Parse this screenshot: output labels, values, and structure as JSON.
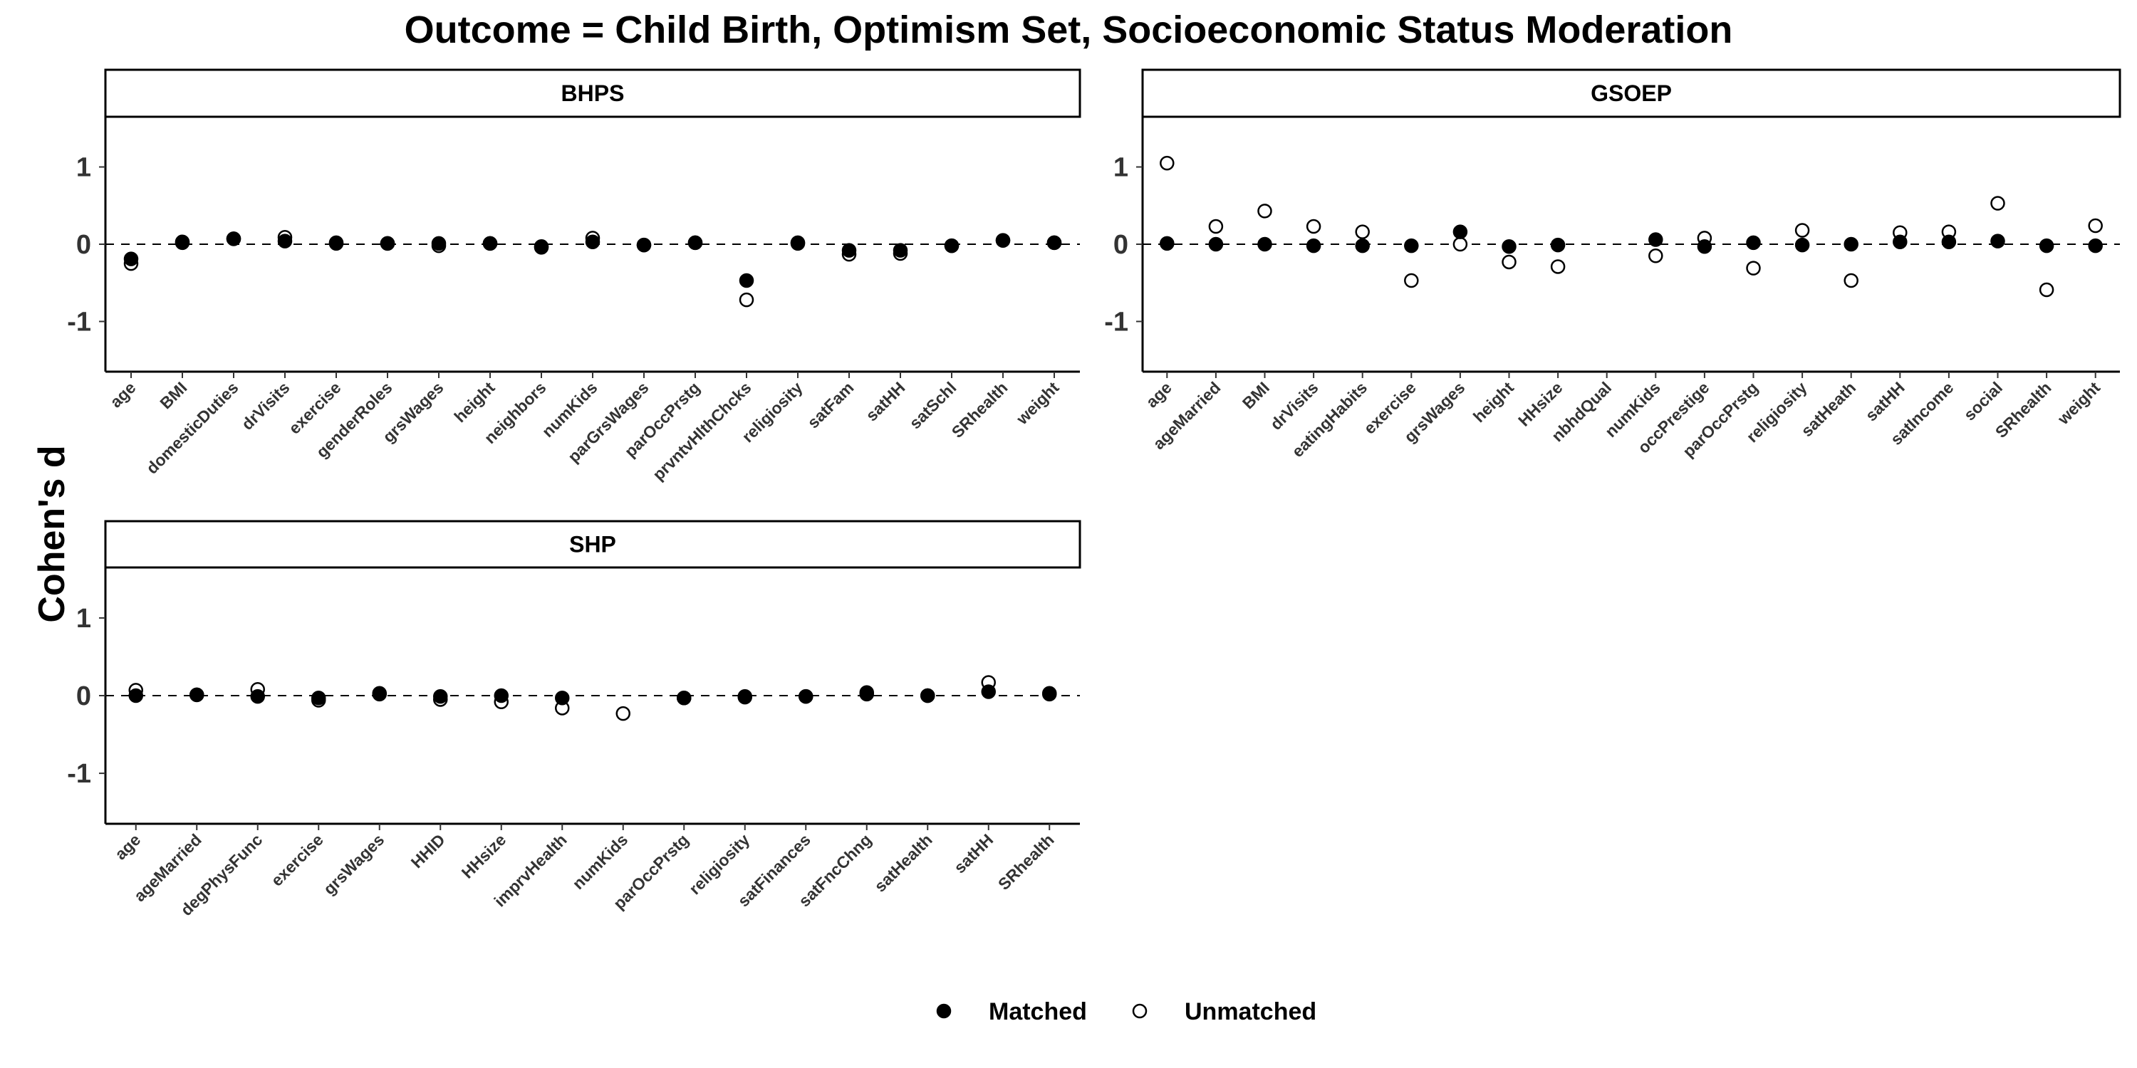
{
  "chart_data": {
    "type": "scatter",
    "title": "Outcome = Child Birth, Optimism Set, Socioeconomic Status Moderation",
    "ylabel": "Cohen's d",
    "ylim": [
      -1.65,
      1.65
    ],
    "yticks": [
      -1,
      0,
      1
    ],
    "reference_line": 0,
    "grid": false,
    "legend": {
      "position": "bottom",
      "entries": [
        {
          "name": "Matched",
          "fill": "#000000"
        },
        {
          "name": "Unmatched",
          "fill": "#ffffff"
        }
      ]
    },
    "panels": [
      {
        "name": "BHPS",
        "categories": [
          "age",
          "BMI",
          "domesticDuties",
          "drVisits",
          "exercise",
          "genderRoles",
          "grsWages",
          "height",
          "neighbors",
          "numKids",
          "parGrsWages",
          "parOccPrstg",
          "prvntvHlthChcks",
          "religiosity",
          "satFam",
          "satHH",
          "satSchl",
          "SRhealth",
          "weight"
        ],
        "series": [
          {
            "name": "Matched",
            "values": [
              -0.19,
              0.03,
              0.07,
              0.04,
              0.02,
              0.01,
              0.01,
              0.01,
              -0.03,
              0.03,
              -0.01,
              0.02,
              -0.47,
              0.02,
              -0.08,
              -0.08,
              -0.02,
              0.05,
              0.02
            ]
          },
          {
            "name": "Unmatched",
            "values": [
              -0.25,
              0.02,
              0.07,
              0.09,
              0.01,
              0.01,
              -0.02,
              0.01,
              -0.04,
              0.08,
              -0.01,
              0.02,
              -0.72,
              0.01,
              -0.13,
              -0.12,
              -0.02,
              0.05,
              0.02
            ]
          }
        ]
      },
      {
        "name": "GSOEP",
        "categories": [
          "age",
          "ageMarried",
          "BMI",
          "drVisits",
          "eatingHabits",
          "exercise",
          "grsWages",
          "height",
          "HHsize",
          "nbhdQual",
          "numKids",
          "occPrestige",
          "parOccPrstg",
          "religiosity",
          "satHeath",
          "satHH",
          "satIncome",
          "social",
          "SRhealth",
          "weight"
        ],
        "series": [
          {
            "name": "Matched",
            "values": [
              0.01,
              0.0,
              0.0,
              -0.02,
              -0.02,
              -0.02,
              0.16,
              -0.03,
              -0.01,
              null,
              0.06,
              -0.03,
              0.02,
              -0.01,
              0.0,
              0.03,
              0.03,
              0.04,
              -0.02,
              -0.02
            ]
          },
          {
            "name": "Unmatched",
            "values": [
              1.05,
              0.23,
              0.43,
              0.23,
              0.16,
              -0.47,
              0.0,
              -0.23,
              -0.29,
              null,
              -0.15,
              0.08,
              -0.31,
              0.18,
              -0.47,
              0.15,
              0.16,
              0.53,
              -0.59,
              0.24
            ]
          }
        ]
      },
      {
        "name": "SHP",
        "categories": [
          "age",
          "ageMarried",
          "degPhysFunc",
          "exercise",
          "grsWages",
          "HHID",
          "HHsize",
          "imprvHealth",
          "numKids",
          "parOccPrstg",
          "religiosity",
          "satFinances",
          "satFncChng",
          "satHealth",
          "satHH",
          "SRhealth"
        ],
        "series": [
          {
            "name": "Matched",
            "values": [
              0.0,
              0.01,
              -0.01,
              -0.03,
              0.02,
              -0.01,
              0.0,
              -0.03,
              null,
              -0.03,
              -0.01,
              -0.01,
              0.02,
              0.0,
              0.05,
              0.02
            ]
          },
          {
            "name": "Unmatched",
            "values": [
              0.07,
              0.01,
              0.08,
              -0.06,
              0.03,
              -0.05,
              -0.08,
              -0.16,
              -0.23,
              -0.03,
              -0.02,
              -0.01,
              0.04,
              0.0,
              0.17,
              0.03
            ]
          }
        ]
      }
    ]
  }
}
